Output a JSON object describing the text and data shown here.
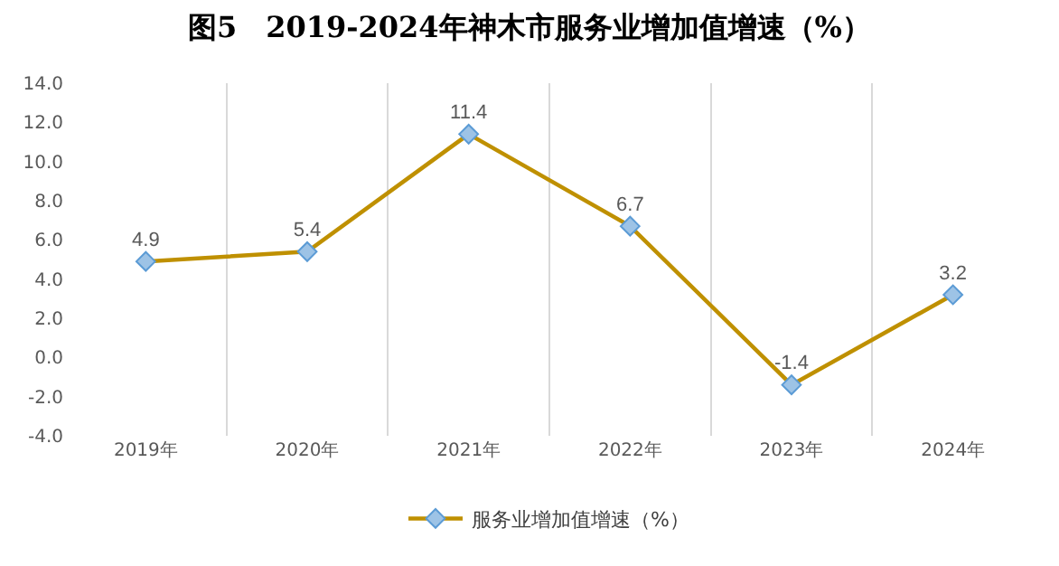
{
  "chart_data": {
    "type": "line",
    "title": "图5　2019-2024年神木市服务业增加值增速（%）",
    "categories": [
      "2019年",
      "2020年",
      "2021年",
      "2022年",
      "2023年",
      "2024年"
    ],
    "series": [
      {
        "name": "服务业增加值增速（%）",
        "color": "#bf9000",
        "values": [
          4.9,
          5.4,
          11.4,
          6.7,
          -1.4,
          3.2
        ]
      }
    ],
    "ylim": [
      -4,
      14
    ],
    "yticks": [
      {
        "value": -4,
        "label": "-4.0"
      },
      {
        "value": -2,
        "label": "-2.0"
      },
      {
        "value": 0,
        "label": "0.0"
      },
      {
        "value": 2,
        "label": "2.0"
      },
      {
        "value": 4,
        "label": "4.0"
      },
      {
        "value": 6,
        "label": "6.0"
      },
      {
        "value": 8,
        "label": "8.0"
      },
      {
        "value": 10,
        "label": "10.0"
      },
      {
        "value": 12,
        "label": "12.0"
      },
      {
        "value": 14,
        "label": "14.0"
      }
    ],
    "grid": "x",
    "legend": "bottom",
    "marker": "diamond",
    "line_style": "solid",
    "data_labels": true
  }
}
